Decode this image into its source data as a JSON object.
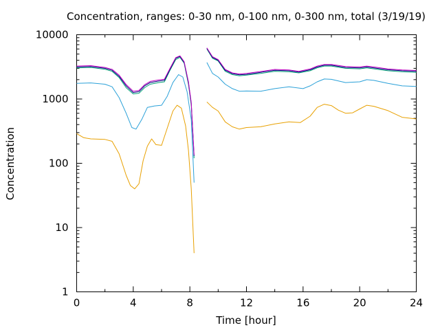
{
  "chart_data": {
    "type": "line",
    "title": "Concentration, ranges: 0-30 nm, 0-100 nm, 0-300 nm, total (3/19/19)",
    "xlabel": "Time [hour]",
    "ylabel": "Concentration",
    "xlim": [
      0,
      24
    ],
    "ylim": [
      1,
      10000
    ],
    "yscale": "log",
    "grid": false,
    "legend": "none",
    "xticks": [
      0,
      4,
      8,
      12,
      16,
      20,
      24
    ],
    "xtick_labels": [
      "0",
      "4",
      "8",
      "12",
      "16",
      "20",
      "24"
    ],
    "yticks": [
      1,
      10,
      100,
      1000,
      10000
    ],
    "ytick_labels": [
      "1",
      "10",
      "100",
      "1000",
      "10000"
    ],
    "series": [
      {
        "color": "#e8a000",
        "points": [
          [
            0,
            290
          ],
          [
            0.5,
            250
          ],
          [
            1,
            240
          ],
          [
            2,
            235
          ],
          [
            2.5,
            220
          ],
          [
            3,
            140
          ],
          [
            3.5,
            65
          ],
          [
            3.8,
            45
          ],
          [
            4.1,
            40
          ],
          [
            4.4,
            48
          ],
          [
            4.7,
            110
          ],
          [
            5,
            185
          ],
          [
            5.3,
            240
          ],
          [
            5.6,
            195
          ],
          [
            6,
            190
          ],
          [
            6.4,
            350
          ],
          [
            6.8,
            650
          ],
          [
            7.1,
            800
          ],
          [
            7.4,
            720
          ],
          [
            7.7,
            380
          ],
          [
            7.9,
            160
          ],
          [
            8.1,
            40
          ],
          [
            8.3,
            4
          ],
          [
            8.5,
            null
          ],
          [
            9.2,
            900
          ],
          [
            9.6,
            740
          ],
          [
            10,
            650
          ],
          [
            10.5,
            440
          ],
          [
            11,
            370
          ],
          [
            11.5,
            340
          ],
          [
            12,
            360
          ],
          [
            13,
            370
          ],
          [
            14,
            410
          ],
          [
            15,
            440
          ],
          [
            15.8,
            430
          ],
          [
            16.5,
            540
          ],
          [
            17,
            740
          ],
          [
            17.5,
            830
          ],
          [
            18,
            790
          ],
          [
            18.5,
            670
          ],
          [
            19,
            600
          ],
          [
            19.5,
            610
          ],
          [
            20,
            700
          ],
          [
            20.5,
            800
          ],
          [
            21,
            770
          ],
          [
            22,
            660
          ],
          [
            23,
            520
          ],
          [
            24,
            490
          ]
        ]
      },
      {
        "color": "#29a0d8",
        "points": [
          [
            0,
            1750
          ],
          [
            1,
            1780
          ],
          [
            2,
            1700
          ],
          [
            2.5,
            1550
          ],
          [
            3,
            1050
          ],
          [
            3.5,
            600
          ],
          [
            3.9,
            360
          ],
          [
            4.2,
            340
          ],
          [
            4.6,
            480
          ],
          [
            5,
            740
          ],
          [
            5.5,
            780
          ],
          [
            6,
            800
          ],
          [
            6.4,
            1100
          ],
          [
            6.8,
            1800
          ],
          [
            7.2,
            2400
          ],
          [
            7.5,
            2200
          ],
          [
            7.8,
            1300
          ],
          [
            8.1,
            480
          ],
          [
            8.3,
            50
          ],
          [
            8.5,
            null
          ],
          [
            9.2,
            3700
          ],
          [
            9.6,
            2500
          ],
          [
            10,
            2200
          ],
          [
            10.5,
            1700
          ],
          [
            11,
            1450
          ],
          [
            11.5,
            1320
          ],
          [
            12,
            1330
          ],
          [
            13,
            1320
          ],
          [
            14,
            1450
          ],
          [
            15,
            1550
          ],
          [
            16,
            1450
          ],
          [
            16.5,
            1600
          ],
          [
            17,
            1850
          ],
          [
            17.5,
            2050
          ],
          [
            18,
            2020
          ],
          [
            19,
            1800
          ],
          [
            20,
            1850
          ],
          [
            20.5,
            2000
          ],
          [
            21,
            1950
          ],
          [
            22,
            1750
          ],
          [
            23,
            1600
          ],
          [
            24,
            1570
          ]
        ]
      },
      {
        "color": "#009e73",
        "points": [
          [
            0,
            3050
          ],
          [
            1,
            3100
          ],
          [
            2,
            2900
          ],
          [
            2.5,
            2700
          ],
          [
            3,
            2150
          ],
          [
            3.5,
            1500
          ],
          [
            4,
            1200
          ],
          [
            4.4,
            1230
          ],
          [
            4.8,
            1500
          ],
          [
            5.2,
            1700
          ],
          [
            5.8,
            1800
          ],
          [
            6.2,
            1850
          ],
          [
            6.6,
            2800
          ],
          [
            7,
            4100
          ],
          [
            7.3,
            4450
          ],
          [
            7.6,
            3600
          ],
          [
            7.9,
            1700
          ],
          [
            8.1,
            800
          ],
          [
            8.3,
            120
          ],
          [
            8.5,
            null
          ],
          [
            9.2,
            6000
          ],
          [
            9.6,
            4300
          ],
          [
            10,
            3900
          ],
          [
            10.5,
            2700
          ],
          [
            11,
            2400
          ],
          [
            11.5,
            2300
          ],
          [
            12,
            2350
          ],
          [
            13,
            2500
          ],
          [
            14,
            2700
          ],
          [
            15,
            2650
          ],
          [
            15.7,
            2550
          ],
          [
            16.5,
            2750
          ],
          [
            17,
            3050
          ],
          [
            17.5,
            3250
          ],
          [
            18,
            3250
          ],
          [
            19,
            3000
          ],
          [
            20,
            2950
          ],
          [
            20.5,
            3050
          ],
          [
            21,
            2950
          ],
          [
            22,
            2750
          ],
          [
            23,
            2650
          ],
          [
            24,
            2600
          ]
        ]
      },
      {
        "color": "#000080",
        "points": [
          [
            0,
            3150
          ],
          [
            1,
            3200
          ],
          [
            2,
            3000
          ],
          [
            2.5,
            2800
          ],
          [
            3,
            2250
          ],
          [
            3.5,
            1600
          ],
          [
            4,
            1260
          ],
          [
            4.4,
            1300
          ],
          [
            4.8,
            1600
          ],
          [
            5.2,
            1800
          ],
          [
            5.8,
            1900
          ],
          [
            6.2,
            1950
          ],
          [
            6.6,
            2900
          ],
          [
            7,
            4300
          ],
          [
            7.3,
            4600
          ],
          [
            7.6,
            3700
          ],
          [
            7.9,
            1800
          ],
          [
            8.1,
            850
          ],
          [
            8.3,
            130
          ],
          [
            8.5,
            null
          ],
          [
            9.2,
            6150
          ],
          [
            9.6,
            4450
          ],
          [
            10,
            4000
          ],
          [
            10.5,
            2800
          ],
          [
            11,
            2480
          ],
          [
            11.5,
            2380
          ],
          [
            12,
            2420
          ],
          [
            13,
            2600
          ],
          [
            14,
            2800
          ],
          [
            15,
            2750
          ],
          [
            15.7,
            2620
          ],
          [
            16.5,
            2850
          ],
          [
            17,
            3150
          ],
          [
            17.5,
            3350
          ],
          [
            18,
            3350
          ],
          [
            19,
            3100
          ],
          [
            20,
            3050
          ],
          [
            20.5,
            3150
          ],
          [
            21,
            3050
          ],
          [
            22,
            2850
          ],
          [
            23,
            2750
          ],
          [
            24,
            2700
          ]
        ]
      },
      {
        "color": "#c000c0",
        "points": [
          [
            0,
            3250
          ],
          [
            1,
            3300
          ],
          [
            2,
            3100
          ],
          [
            2.5,
            2900
          ],
          [
            3,
            2350
          ],
          [
            3.5,
            1680
          ],
          [
            4,
            1320
          ],
          [
            4.4,
            1360
          ],
          [
            4.8,
            1670
          ],
          [
            5.2,
            1880
          ],
          [
            5.8,
            1980
          ],
          [
            6.2,
            2030
          ],
          [
            6.6,
            3000
          ],
          [
            7,
            4400
          ],
          [
            7.3,
            4700
          ],
          [
            7.6,
            3800
          ],
          [
            7.9,
            1850
          ],
          [
            8.1,
            880
          ],
          [
            8.3,
            135
          ],
          [
            8.5,
            null
          ],
          [
            9.2,
            6250
          ],
          [
            9.6,
            4550
          ],
          [
            10,
            4100
          ],
          [
            10.5,
            2880
          ],
          [
            11,
            2550
          ],
          [
            11.5,
            2450
          ],
          [
            12,
            2500
          ],
          [
            13,
            2680
          ],
          [
            14,
            2880
          ],
          [
            15,
            2830
          ],
          [
            15.7,
            2700
          ],
          [
            16.5,
            2930
          ],
          [
            17,
            3250
          ],
          [
            17.5,
            3450
          ],
          [
            18,
            3450
          ],
          [
            19,
            3200
          ],
          [
            20,
            3150
          ],
          [
            20.5,
            3250
          ],
          [
            21,
            3150
          ],
          [
            22,
            2930
          ],
          [
            23,
            2830
          ],
          [
            24,
            2780
          ]
        ]
      }
    ]
  }
}
